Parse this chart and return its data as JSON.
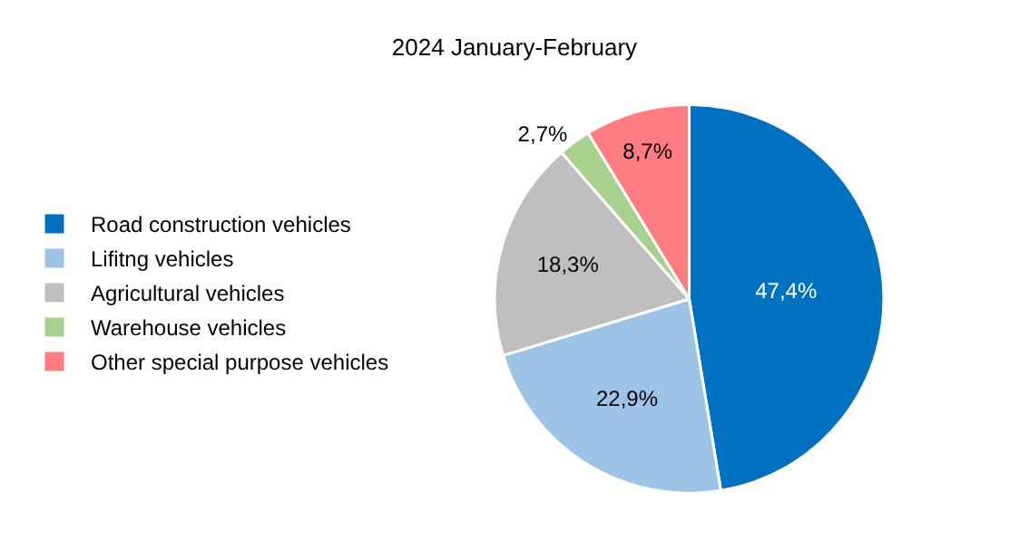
{
  "chart_data": {
    "type": "pie",
    "title": "2024 January-February",
    "categories": [
      "Road construction vehicles",
      "Lifitng vehicles",
      "Agricultural vehicles",
      "Warehouse vehicles",
      "Other special purpose vehicles"
    ],
    "values": [
      47.4,
      22.9,
      18.3,
      2.7,
      8.7
    ],
    "value_labels": [
      "47,4%",
      "22,9%",
      "18,3%",
      "2,7%",
      "8,7%"
    ],
    "colors": [
      "#0070c0",
      "#9dc3e6",
      "#bfbfbf",
      "#a9d18e",
      "#ff7c80"
    ],
    "legend": "left"
  }
}
